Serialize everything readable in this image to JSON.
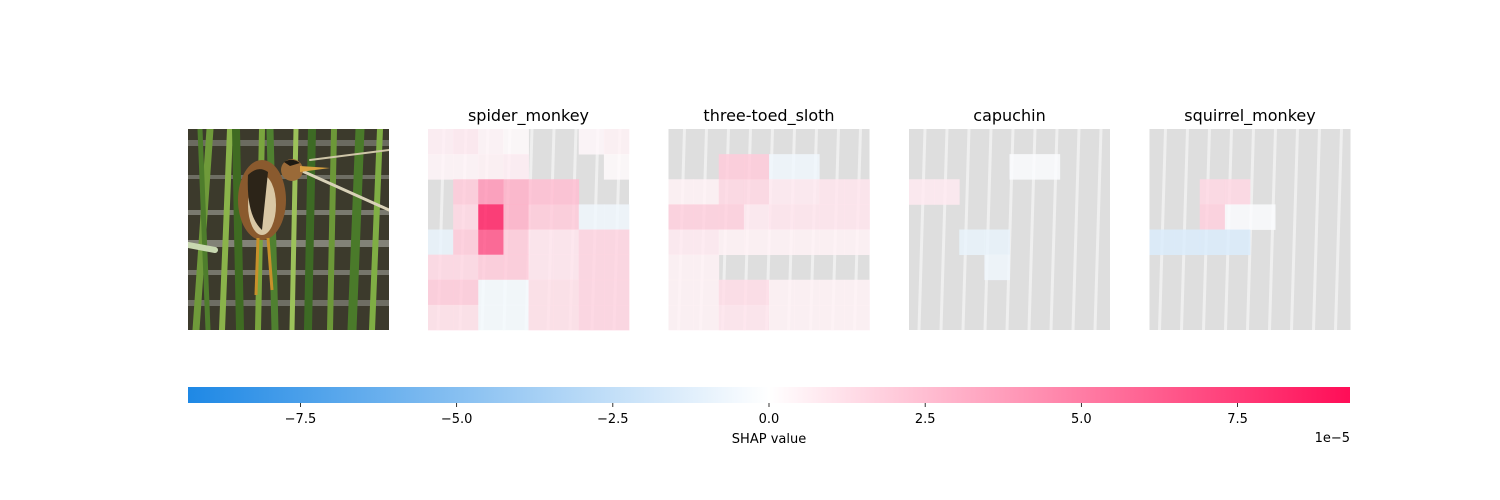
{
  "colors": {
    "negative": "#1e88e5",
    "neutral": "#ffffff",
    "positive": "#ff0d57",
    "image_gray": "#dedede"
  },
  "chart_data": {
    "type": "heatmap",
    "original_image_label": "",
    "panels": [
      {
        "title": "spider_monkey",
        "values": [
          [
            0.6,
            0.8,
            0.4,
            0.2,
            0.0,
            0.0,
            0.3,
            0.5
          ],
          [
            0.4,
            0.4,
            0.5,
            0.6,
            0.0,
            0.0,
            0.0,
            0.2
          ],
          [
            0.0,
            2.0,
            4.0,
            3.0,
            2.5,
            2.5,
            0.0,
            0.0
          ],
          [
            0.0,
            1.5,
            8.5,
            3.0,
            2.0,
            2.0,
            -0.6,
            -0.6
          ],
          [
            -0.9,
            2.0,
            6.5,
            2.0,
            1.0,
            1.0,
            1.6,
            1.6
          ],
          [
            1.5,
            1.5,
            2.0,
            2.0,
            1.0,
            1.0,
            1.6,
            1.6
          ],
          [
            2.0,
            2.0,
            -0.4,
            -0.4,
            1.2,
            1.2,
            1.6,
            1.6
          ],
          [
            1.2,
            1.2,
            -0.4,
            -0.4,
            1.2,
            1.2,
            1.6,
            1.6
          ]
        ]
      },
      {
        "title": "three-toed_sloth",
        "values": [
          [
            0.0,
            0.0,
            0.0,
            0.0,
            0.0,
            0.0,
            0.0,
            0.0
          ],
          [
            0.0,
            0.0,
            2.0,
            2.0,
            -0.6,
            -0.6,
            0.0,
            0.0
          ],
          [
            0.5,
            0.5,
            1.5,
            1.5,
            0.8,
            0.8,
            1.0,
            1.0
          ],
          [
            1.8,
            1.8,
            1.8,
            0.8,
            1.0,
            1.0,
            1.0,
            1.0
          ],
          [
            0.8,
            0.8,
            0.5,
            0.5,
            0.5,
            0.5,
            0.5,
            0.5
          ],
          [
            0.5,
            0.5,
            0.0,
            0.0,
            0.0,
            0.0,
            0.0,
            0.0
          ],
          [
            0.5,
            0.5,
            1.3,
            1.3,
            0.5,
            0.5,
            0.5,
            0.5
          ],
          [
            0.5,
            0.5,
            1.0,
            1.0,
            0.5,
            0.5,
            0.5,
            0.5
          ]
        ]
      },
      {
        "title": "capuchin",
        "values": [
          [
            0.0,
            0.0,
            0.0,
            0.0,
            0.0,
            0.0,
            0.0,
            0.0
          ],
          [
            0.0,
            0.0,
            0.0,
            0.0,
            -0.2,
            -0.2,
            0.0,
            0.0
          ],
          [
            0.8,
            0.8,
            0.0,
            0.0,
            0.0,
            0.0,
            0.0,
            0.0
          ],
          [
            0.0,
            0.0,
            0.0,
            0.0,
            0.0,
            0.0,
            0.0,
            0.0
          ],
          [
            0.0,
            0.0,
            -0.9,
            -0.9,
            0.0,
            0.0,
            0.0,
            0.0
          ],
          [
            0.0,
            0.0,
            0.0,
            -0.6,
            0.0,
            0.0,
            0.0,
            0.0
          ],
          [
            0.0,
            0.0,
            0.0,
            0.0,
            0.0,
            0.0,
            0.0,
            0.0
          ],
          [
            0.0,
            0.0,
            0.0,
            0.0,
            0.0,
            0.0,
            0.0,
            0.0
          ]
        ]
      },
      {
        "title": "squirrel_monkey",
        "values": [
          [
            0.0,
            0.0,
            0.0,
            0.0,
            0.0,
            0.0,
            0.0,
            0.0
          ],
          [
            0.0,
            0.0,
            0.0,
            0.0,
            0.0,
            0.0,
            0.0,
            0.0
          ],
          [
            0.0,
            0.0,
            1.5,
            1.5,
            0.0,
            0.0,
            0.0,
            0.0
          ],
          [
            0.0,
            0.0,
            1.8,
            -0.2,
            -0.2,
            0.0,
            0.0,
            0.0
          ],
          [
            -1.5,
            -1.5,
            -1.5,
            -1.5,
            0.0,
            0.0,
            0.0,
            0.0
          ],
          [
            0.0,
            0.0,
            0.0,
            0.0,
            0.0,
            0.0,
            0.0,
            0.0
          ],
          [
            0.0,
            0.0,
            0.0,
            0.0,
            0.0,
            0.0,
            0.0,
            0.0
          ],
          [
            0.0,
            0.0,
            0.0,
            0.0,
            0.0,
            0.0,
            0.0,
            0.0
          ]
        ]
      }
    ],
    "colorbar": {
      "label": "SHAP value",
      "range": [
        -9.3,
        9.3
      ],
      "ticks": [
        -7.5,
        -5.0,
        -2.5,
        0.0,
        2.5,
        5.0,
        7.5
      ],
      "tick_labels": [
        "−7.5",
        "−5.0",
        "−2.5",
        "0.0",
        "2.5",
        "5.0",
        "7.5"
      ],
      "scale_label": "1e−5"
    }
  }
}
